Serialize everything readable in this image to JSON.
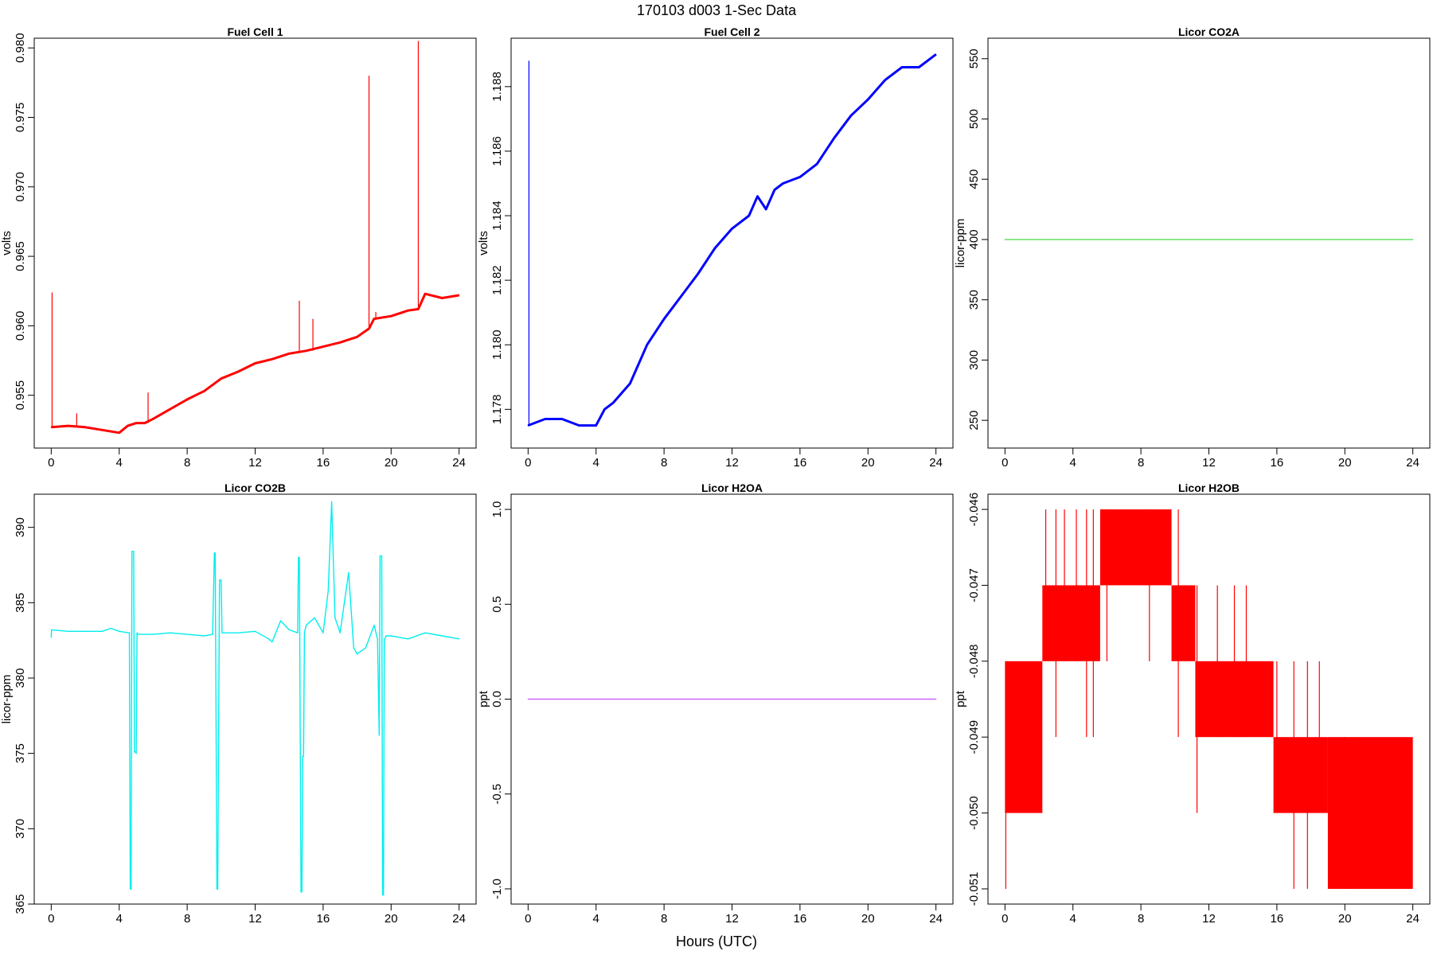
{
  "figure": {
    "title": "170103   d003   1-Sec Data",
    "xlabel": "Hours (UTC)"
  },
  "chart_data": [
    {
      "type": "line",
      "title": "Fuel Cell 1",
      "ylabel": "volts",
      "color": "#ff0000",
      "xlim": [
        -1,
        25
      ],
      "ylim": [
        0.9512,
        0.9807
      ],
      "x_ticks": [
        0,
        4,
        8,
        12,
        16,
        20,
        24
      ],
      "y_ticks": [
        0.955,
        0.96,
        0.965,
        0.97,
        0.975,
        0.98
      ],
      "y_tick_labels": [
        "0.955",
        "0.960",
        "0.965",
        "0.970",
        "0.975",
        "0.980"
      ],
      "series": [
        {
          "x": [
            0,
            1,
            2,
            3,
            4,
            4.5,
            5,
            5.5,
            6,
            7,
            8,
            9,
            10,
            11,
            12,
            13,
            14,
            15,
            16,
            17,
            18,
            18.7,
            19,
            20,
            21,
            21.6,
            22,
            23,
            24
          ],
          "y": [
            0.9527,
            0.9528,
            0.9527,
            0.9525,
            0.9523,
            0.9528,
            0.953,
            0.953,
            0.9533,
            0.954,
            0.9547,
            0.9553,
            0.9562,
            0.9567,
            0.9573,
            0.9576,
            0.958,
            0.9582,
            0.9585,
            0.9588,
            0.9592,
            0.9598,
            0.9605,
            0.9607,
            0.9611,
            0.9612,
            0.9623,
            0.962,
            0.9622
          ],
          "spikes": [
            {
              "x": 0.05,
              "y": 0.9624
            },
            {
              "x": 1.5,
              "y": 0.9537
            },
            {
              "x": 5.7,
              "y": 0.9552
            },
            {
              "x": 14.6,
              "y": 0.9618
            },
            {
              "x": 15.4,
              "y": 0.9605
            },
            {
              "x": 18.7,
              "y": 0.978
            },
            {
              "x": 19.1,
              "y": 0.961
            },
            {
              "x": 21.6,
              "y": 0.9805
            }
          ]
        }
      ]
    },
    {
      "type": "line",
      "title": "Fuel Cell 2",
      "ylabel": "volts",
      "color": "#0000ff",
      "xlim": [
        -1,
        25
      ],
      "ylim": [
        1.1768,
        1.1895
      ],
      "x_ticks": [
        0,
        4,
        8,
        12,
        16,
        20,
        24
      ],
      "y_ticks": [
        1.178,
        1.18,
        1.182,
        1.184,
        1.186,
        1.188
      ],
      "y_tick_labels": [
        "1.178",
        "1.180",
        "1.182",
        "1.184",
        "1.186",
        "1.188"
      ],
      "series": [
        {
          "x": [
            0,
            1,
            2,
            3,
            4,
            4.5,
            5,
            6,
            7,
            8,
            9,
            10,
            11,
            12,
            13,
            13.5,
            14,
            14.5,
            15,
            16,
            17,
            18,
            19,
            20,
            21,
            22,
            23,
            24
          ],
          "y": [
            1.1775,
            1.1777,
            1.1777,
            1.1775,
            1.1775,
            1.178,
            1.1782,
            1.1788,
            1.18,
            1.1808,
            1.1815,
            1.1822,
            1.183,
            1.1836,
            1.184,
            1.1846,
            1.1842,
            1.1848,
            1.185,
            1.1852,
            1.1856,
            1.1864,
            1.1871,
            1.1876,
            1.1882,
            1.1886,
            1.1886,
            1.189
          ],
          "spikes": [
            {
              "x": 0.05,
              "y": 1.1888
            }
          ]
        }
      ]
    },
    {
      "type": "line",
      "title": "Licor CO2A",
      "ylabel": "licor-ppm",
      "color": "#66dd66",
      "xlim": [
        -1,
        25
      ],
      "ylim": [
        227,
        567
      ],
      "x_ticks": [
        0,
        4,
        8,
        12,
        16,
        20,
        24
      ],
      "y_ticks": [
        250,
        300,
        350,
        400,
        450,
        500,
        550
      ],
      "y_tick_labels": [
        "250",
        "300",
        "350",
        "400",
        "450",
        "500",
        "550"
      ],
      "series": [
        {
          "x": [
            0,
            24
          ],
          "y": [
            400,
            400
          ]
        }
      ]
    },
    {
      "type": "line",
      "title": "Licor CO2B",
      "ylabel": "licor-ppm",
      "color": "#00eeee",
      "xlim": [
        -1,
        25
      ],
      "ylim": [
        365,
        392.2
      ],
      "x_ticks": [
        0,
        4,
        8,
        12,
        16,
        20,
        24
      ],
      "y_ticks": [
        365,
        370,
        375,
        380,
        385,
        390
      ],
      "y_tick_labels": [
        "365",
        "370",
        "375",
        "380",
        "385",
        "390"
      ],
      "series": [
        {
          "x": [
            0,
            0.02,
            1,
            2,
            3,
            3.5,
            4,
            4.6,
            4.65,
            4.7,
            4.75,
            4.8,
            4.85,
            4.9,
            4.95,
            5.0,
            5.05,
            5.1,
            6,
            7,
            8,
            9,
            9.5,
            9.6,
            9.65,
            9.75,
            9.8,
            9.9,
            9.95,
            10.0,
            10.05,
            10.1,
            11,
            12,
            12.8,
            13,
            13.5,
            14,
            14.5,
            14.55,
            14.6,
            14.7,
            14.75,
            14.8,
            14.85,
            14.9,
            15.0,
            15.5,
            16,
            16.3,
            16.5,
            16.7,
            17,
            17.5,
            17.8,
            18,
            18.5,
            19,
            19.2,
            19.3,
            19.35,
            19.4,
            19.45,
            19.5,
            19.55,
            19.6,
            19.7,
            20,
            21,
            22,
            23,
            24
          ],
          "y": [
            382.7,
            383.2,
            383.1,
            383.1,
            383.1,
            383.3,
            383.1,
            383.0,
            366.0,
            366.0,
            388.4,
            388.4,
            388.4,
            375.1,
            375.1,
            375.0,
            383.0,
            382.9,
            382.9,
            383.0,
            382.9,
            382.8,
            382.9,
            388.3,
            388.3,
            366.0,
            366.0,
            386.5,
            386.5,
            386.5,
            383.0,
            383.0,
            383.0,
            383.1,
            382.6,
            382.4,
            383.8,
            383.2,
            383.0,
            388.0,
            388.0,
            365.8,
            365.8,
            374.8,
            374.8,
            383.0,
            383.5,
            384.0,
            383.0,
            385.8,
            391.7,
            384.0,
            383.0,
            387.0,
            382.0,
            381.6,
            382.0,
            383.5,
            382.6,
            376.2,
            388.1,
            388.1,
            388.1,
            365.6,
            365.6,
            382.5,
            382.8,
            382.8,
            382.6,
            383.0,
            382.8,
            382.6
          ]
        }
      ]
    },
    {
      "type": "line",
      "title": "Licor H2OA",
      "ylabel": "ppt",
      "color": "#cc66ff",
      "xlim": [
        -1,
        25
      ],
      "ylim": [
        -1.08,
        1.08
      ],
      "x_ticks": [
        0,
        4,
        8,
        12,
        16,
        20,
        24
      ],
      "y_ticks": [
        -1.0,
        -0.5,
        0.0,
        0.5,
        1.0
      ],
      "y_tick_labels": [
        "-1.0",
        "-0.5",
        "0.0",
        "0.5",
        "1.0"
      ],
      "series": [
        {
          "x": [
            0,
            24
          ],
          "y": [
            0,
            0
          ]
        }
      ]
    },
    {
      "type": "line",
      "title": "Licor H2OB",
      "ylabel": "ppt",
      "color": "#ff0000",
      "xlim": [
        -1,
        25
      ],
      "ylim": [
        -0.0512,
        -0.0458
      ],
      "x_ticks": [
        0,
        4,
        8,
        12,
        16,
        20,
        24
      ],
      "y_ticks": [
        -0.051,
        -0.05,
        -0.049,
        -0.048,
        -0.047,
        -0.046
      ],
      "y_tick_labels": [
        "-0.051",
        "-0.050",
        "-0.049",
        "-0.048",
        "-0.047",
        "-0.046"
      ],
      "series": [
        {
          "bands": [
            {
              "x0": 0.0,
              "x1": 2.2,
              "y0": -0.05,
              "y1": -0.048
            },
            {
              "x0": 2.2,
              "x1": 5.6,
              "y0": -0.048,
              "y1": -0.047
            },
            {
              "x0": 5.6,
              "x1": 9.8,
              "y0": -0.047,
              "y1": -0.046
            },
            {
              "x0": 9.8,
              "x1": 11.2,
              "y0": -0.048,
              "y1": -0.047
            },
            {
              "x0": 11.2,
              "x1": 15.8,
              "y0": -0.049,
              "y1": -0.048
            },
            {
              "x0": 15.8,
              "x1": 19.0,
              "y0": -0.05,
              "y1": -0.049
            },
            {
              "x0": 19.0,
              "x1": 24.0,
              "y0": -0.051,
              "y1": -0.049
            }
          ],
          "spikes": [
            {
              "x": 0.05,
              "y0": -0.051,
              "y1": -0.05
            },
            {
              "x": 2.4,
              "y0": -0.048,
              "y1": -0.046
            },
            {
              "x": 3.0,
              "y0": -0.049,
              "y1": -0.046
            },
            {
              "x": 3.5,
              "y0": -0.048,
              "y1": -0.046
            },
            {
              "x": 4.2,
              "y0": -0.048,
              "y1": -0.046
            },
            {
              "x": 4.8,
              "y0": -0.049,
              "y1": -0.046
            },
            {
              "x": 5.2,
              "y0": -0.049,
              "y1": -0.046
            },
            {
              "x": 6.0,
              "y0": -0.048,
              "y1": -0.046
            },
            {
              "x": 8.5,
              "y0": -0.048,
              "y1": -0.046
            },
            {
              "x": 10.2,
              "y0": -0.049,
              "y1": -0.046
            },
            {
              "x": 11.3,
              "y0": -0.05,
              "y1": -0.047
            },
            {
              "x": 12.5,
              "y0": -0.049,
              "y1": -0.047
            },
            {
              "x": 13.5,
              "y0": -0.049,
              "y1": -0.047
            },
            {
              "x": 14.2,
              "y0": -0.049,
              "y1": -0.047
            },
            {
              "x": 16.0,
              "y0": -0.05,
              "y1": -0.048
            },
            {
              "x": 17.0,
              "y0": -0.051,
              "y1": -0.048
            },
            {
              "x": 17.8,
              "y0": -0.051,
              "y1": -0.048
            },
            {
              "x": 18.5,
              "y0": -0.05,
              "y1": -0.048
            },
            {
              "x": 20.0,
              "y0": -0.051,
              "y1": -0.049
            }
          ]
        }
      ]
    }
  ]
}
